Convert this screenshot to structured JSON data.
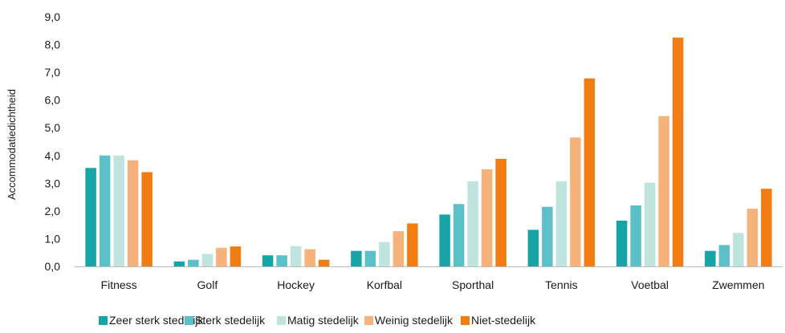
{
  "chart_data": {
    "type": "bar",
    "title": "",
    "xlabel": "",
    "ylabel": "Accommodatiedichtheid",
    "ylim": [
      0,
      9
    ],
    "ytick_step": 1,
    "ytick_labels": [
      "0,0",
      "1,0",
      "2,0",
      "3,0",
      "4,0",
      "5,0",
      "6,0",
      "7,0",
      "8,0",
      "9,0"
    ],
    "grid": false,
    "legend_position": "bottom",
    "categories": [
      "Fitness",
      "Golf",
      "Hockey",
      "Korfbal",
      "Sporthal",
      "Tennis",
      "Voetbal",
      "Zwemmen"
    ],
    "series": [
      {
        "name": "Zeer sterk stedelijk",
        "color": "#17a4a6",
        "values": [
          3.55,
          0.18,
          0.4,
          0.56,
          1.87,
          1.32,
          1.65,
          0.56
        ]
      },
      {
        "name": "Sterk stedelijk",
        "color": "#5bc0c8",
        "values": [
          4.0,
          0.24,
          0.4,
          0.56,
          2.25,
          2.15,
          2.2,
          0.77
        ]
      },
      {
        "name": "Matig stedelijk",
        "color": "#bfe3dd",
        "values": [
          4.0,
          0.45,
          0.73,
          0.88,
          3.07,
          3.07,
          3.02,
          1.21
        ]
      },
      {
        "name": "Weinig stedelijk",
        "color": "#f5b27a",
        "values": [
          3.83,
          0.67,
          0.62,
          1.27,
          3.5,
          4.65,
          5.42,
          2.08
        ]
      },
      {
        "name": "Niet-stedelijk",
        "color": "#f07c12",
        "values": [
          3.4,
          0.72,
          0.24,
          1.55,
          3.88,
          6.78,
          8.25,
          2.8
        ]
      }
    ]
  }
}
